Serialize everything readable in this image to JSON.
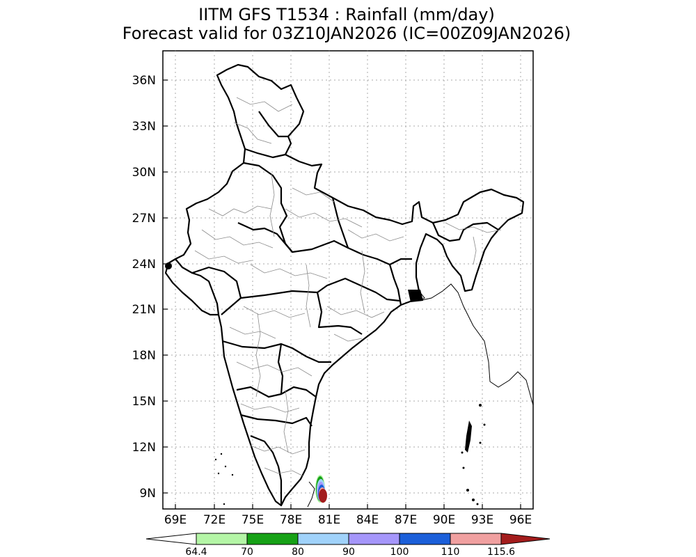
{
  "figure": {
    "title_line1": "IITM GFS T1534 : Rainfall (mm/day)",
    "title_line2": "Forecast valid for 03Z10JAN2026 (IC=00Z09JAN2026)"
  },
  "axes": {
    "lat_labels": [
      "36N",
      "33N",
      "30N",
      "27N",
      "24N",
      "21N",
      "18N",
      "15N",
      "12N",
      "9N"
    ],
    "lon_labels": [
      "69E",
      "72E",
      "75E",
      "78E",
      "81E",
      "84E",
      "87E",
      "90E",
      "93E",
      "96E"
    ]
  },
  "colorbar": {
    "labels": [
      "64.4",
      "70",
      "80",
      "90",
      "100",
      "110",
      "115.6"
    ],
    "colors": [
      "#ffffff",
      "#b4f5a6",
      "#16a116",
      "#a0d2fa",
      "#a596fa",
      "#1b5fd9",
      "#f0a0a0",
      "#a31c1c"
    ]
  },
  "map": {
    "region": "India",
    "rain_cell_location": "southern Tamil Nadu coast near 9N 81E"
  }
}
